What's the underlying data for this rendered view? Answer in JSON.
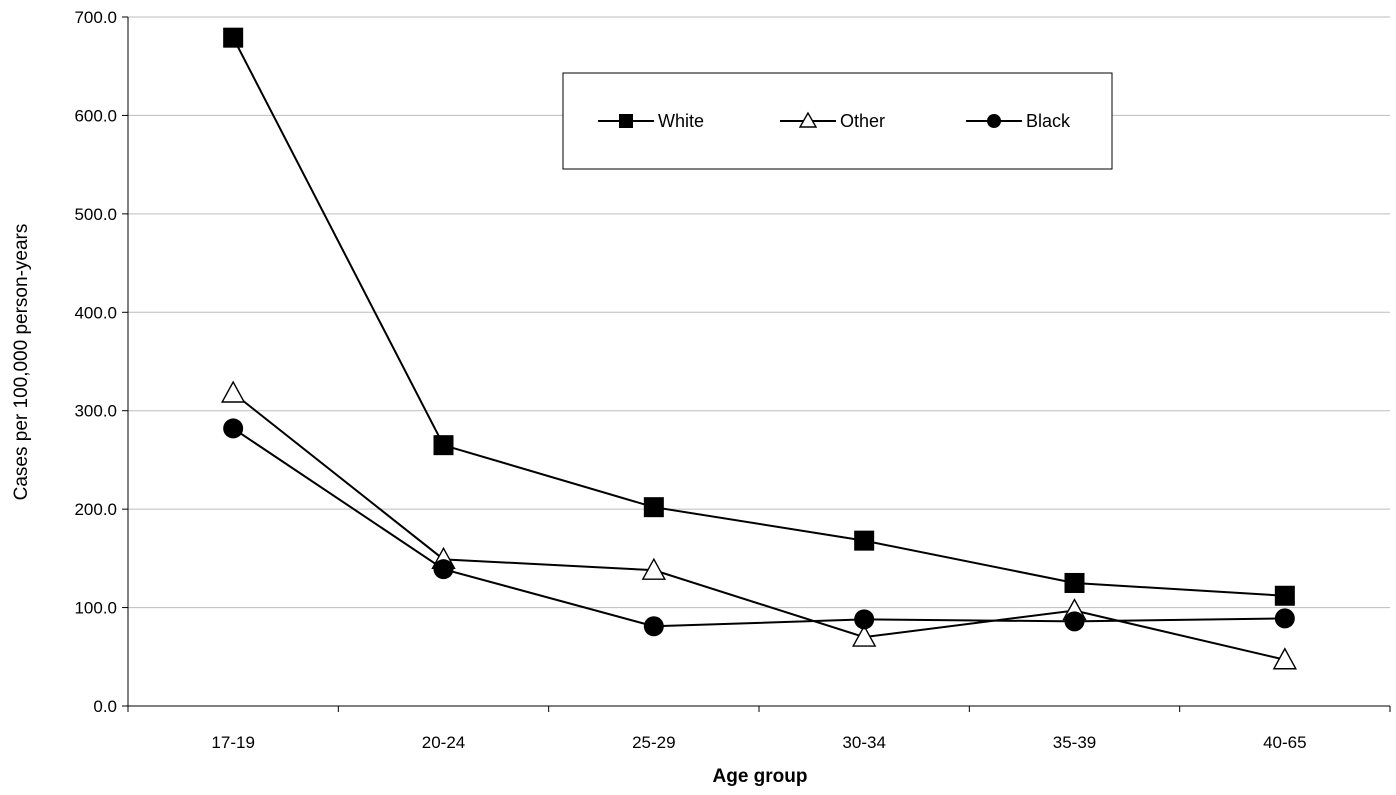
{
  "chart_data": {
    "type": "line",
    "title": "",
    "xlabel": "Age group",
    "ylabel": "Cases per 100,000 person-years",
    "categories": [
      "17-19",
      "20-24",
      "25-29",
      "30-34",
      "35-39",
      "40-65"
    ],
    "ylim": [
      0,
      700
    ],
    "yticks": [
      "0.0",
      "100.0",
      "200.0",
      "300.0",
      "400.0",
      "500.0",
      "600.0",
      "700.0"
    ],
    "grid": true,
    "legend_position": "top-center",
    "series": [
      {
        "name": "White",
        "marker": "square",
        "color": "#000000",
        "values": [
          679,
          265,
          202,
          168,
          125,
          112
        ]
      },
      {
        "name": "Other",
        "marker": "triangle-open",
        "color": "#000000",
        "values": [
          318,
          149,
          138,
          70,
          97,
          47
        ]
      },
      {
        "name": "Black",
        "marker": "circle",
        "color": "#000000",
        "values": [
          282,
          139,
          81,
          88,
          86,
          89
        ]
      }
    ]
  }
}
